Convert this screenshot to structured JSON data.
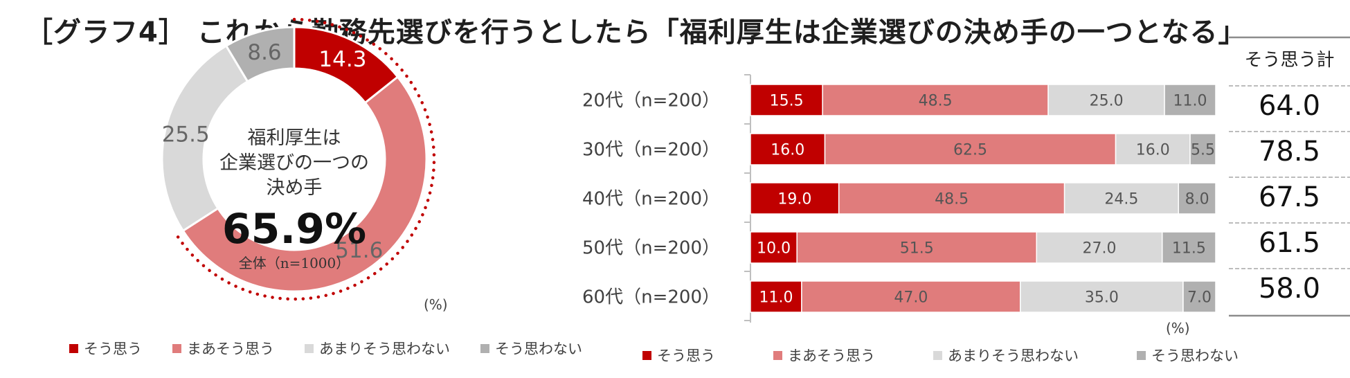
{
  "title": "［グラフ4］ これから勤務先選びを行うとしたら「福利厚生は企業選びの決め手の一つとなる」",
  "colors": {
    "sou_omou": "#c00000",
    "maa": "#e07c7c",
    "amari": "#d9d9d9",
    "omowanai": "#b0b0b0",
    "total_line": "#a6a6a6"
  },
  "legend": [
    "そう思う",
    "まあそう思う",
    "あまりそう思わない",
    "そう思わない"
  ],
  "donut": {
    "center_line1": "福利厚生は",
    "center_line2": "企業選びの一つの",
    "center_line3": "決め手",
    "center_value": "65.9%",
    "center_base": "全体（n=1000）",
    "unit": "(%)"
  },
  "bar_unit": "(%)",
  "total_header": "そう思う計",
  "totals": [
    "64.0",
    "78.5",
    "67.5",
    "61.5",
    "58.0"
  ],
  "chart_data": [
    {
      "type": "pie",
      "categories": [
        "そう思う",
        "まあそう思う",
        "あまりそう思わない",
        "そう思わない"
      ],
      "values": [
        14.3,
        51.6,
        25.5,
        8.6
      ],
      "labels": [
        "14.3",
        "51.6",
        "25.5",
        "8.6"
      ]
    },
    {
      "type": "bar",
      "orientation": "horizontal",
      "stacked": true,
      "categories": [
        "20代（n=200）",
        "30代（n=200）",
        "40代（n=200）",
        "50代（n=200）",
        "60代（n=200）"
      ],
      "series": [
        {
          "name": "そう思う",
          "values": [
            15.5,
            16.0,
            19.0,
            10.0,
            11.0
          ],
          "labels": [
            "15.5",
            "16.0",
            "19.0",
            "10.0",
            "11.0"
          ]
        },
        {
          "name": "まあそう思う",
          "values": [
            48.5,
            62.5,
            48.5,
            51.5,
            47.0
          ],
          "labels": [
            "48.5",
            "62.5",
            "48.5",
            "51.5",
            "47.0"
          ]
        },
        {
          "name": "あまりそう思わない",
          "values": [
            25.0,
            16.0,
            24.5,
            27.0,
            35.0
          ],
          "labels": [
            "25.0",
            "16.0",
            "24.5",
            "27.0",
            "35.0"
          ]
        },
        {
          "name": "そう思わない",
          "values": [
            11.0,
            5.5,
            8.0,
            11.5,
            7.0
          ],
          "labels": [
            "11.0",
            "5.5",
            "8.0",
            "11.5",
            "7.0"
          ]
        }
      ],
      "xlim": [
        0,
        100
      ]
    }
  ]
}
